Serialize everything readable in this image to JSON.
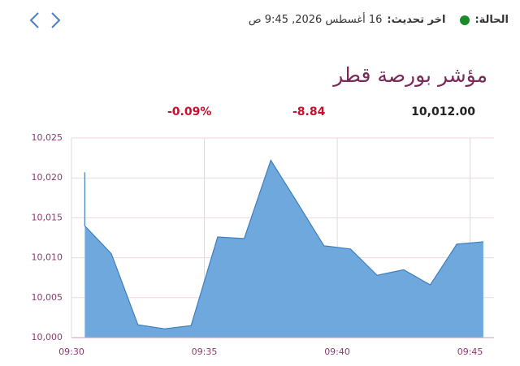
{
  "header": {
    "status_label": "الحالة:",
    "update_label": "اخر تحديث:",
    "update_time": "16 أغسطس 2026, 9:45 ص",
    "title": "مؤشر بورصة قطر",
    "price": "10,012.00",
    "change": "-8.84",
    "change_percent": "-0.09%"
  },
  "chart_data": {
    "type": "area",
    "x": [
      570.5,
      570.5,
      571.5,
      572.5,
      573.5,
      574.5,
      575.5,
      576.5,
      577.5,
      578.5,
      579.5,
      580.5,
      581.5,
      582.5,
      583.5,
      584.5,
      585.5
    ],
    "values": [
      10020.7,
      10014.0,
      10010.5,
      10001.6,
      10001.1,
      10001.5,
      10012.6,
      10012.4,
      10022.2,
      10016.9,
      10011.5,
      10011.1,
      10007.8,
      10008.5,
      10006.6,
      10011.7,
      10012.0
    ],
    "color": "#6fa8dc",
    "line_color": "#3f7fbf",
    "xlim": [
      570,
      585.9
    ],
    "xticks": [
      {
        "value": 570,
        "label": "09:30"
      },
      {
        "value": 575,
        "label": "09:35"
      },
      {
        "value": 580,
        "label": "09:40"
      },
      {
        "value": 585,
        "label": "09:45"
      }
    ],
    "ylim": [
      10000,
      10025
    ],
    "yticks": [
      {
        "value": 10000,
        "label": "10,000"
      },
      {
        "value": 10005,
        "label": "10,005"
      },
      {
        "value": 10010,
        "label": "10,010"
      },
      {
        "value": 10015,
        "label": "10,015"
      },
      {
        "value": 10020,
        "label": "10,020"
      },
      {
        "value": 10025,
        "label": "10,025"
      }
    ],
    "grid": true
  }
}
